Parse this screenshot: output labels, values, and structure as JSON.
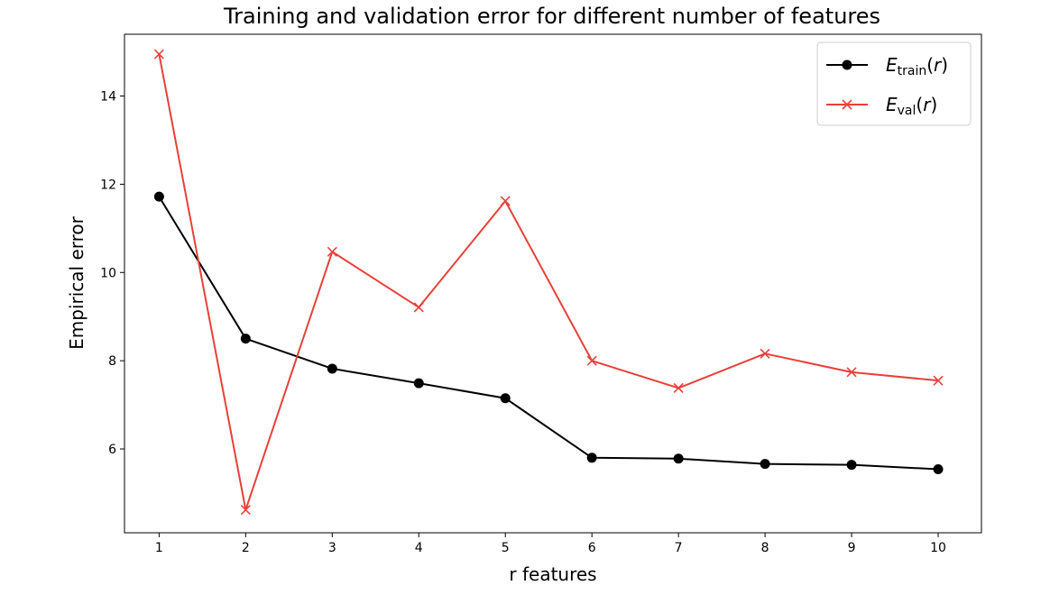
{
  "chart_data": {
    "type": "line",
    "title": "Training and validation error for different number of features",
    "xlabel": "r features",
    "ylabel": "Empirical error",
    "x": [
      1,
      2,
      3,
      4,
      5,
      6,
      7,
      8,
      9,
      10
    ],
    "xticks": [
      "1",
      "2",
      "3",
      "4",
      "5",
      "6",
      "7",
      "8",
      "9",
      "10"
    ],
    "yticks": [
      6,
      8,
      10,
      12,
      14
    ],
    "xlim": [
      0.6,
      10.5
    ],
    "ylim": [
      4.1,
      15.4
    ],
    "grid": false,
    "legend_position": "top-right",
    "series": [
      {
        "name": "E_train(r)",
        "legend": {
          "main": "E",
          "sub": "train",
          "arg": "r"
        },
        "color": "#000000",
        "marker": "circle",
        "values": [
          11.72,
          8.5,
          7.82,
          7.49,
          7.15,
          5.8,
          5.78,
          5.66,
          5.64,
          5.54
        ]
      },
      {
        "name": "E_val(r)",
        "legend": {
          "main": "E",
          "sub": "val",
          "arg": "r"
        },
        "color": "#e8403a",
        "marker": "x",
        "values": [
          14.95,
          4.62,
          10.47,
          9.21,
          11.62,
          8.0,
          7.38,
          8.16,
          7.74,
          7.55
        ]
      }
    ]
  }
}
